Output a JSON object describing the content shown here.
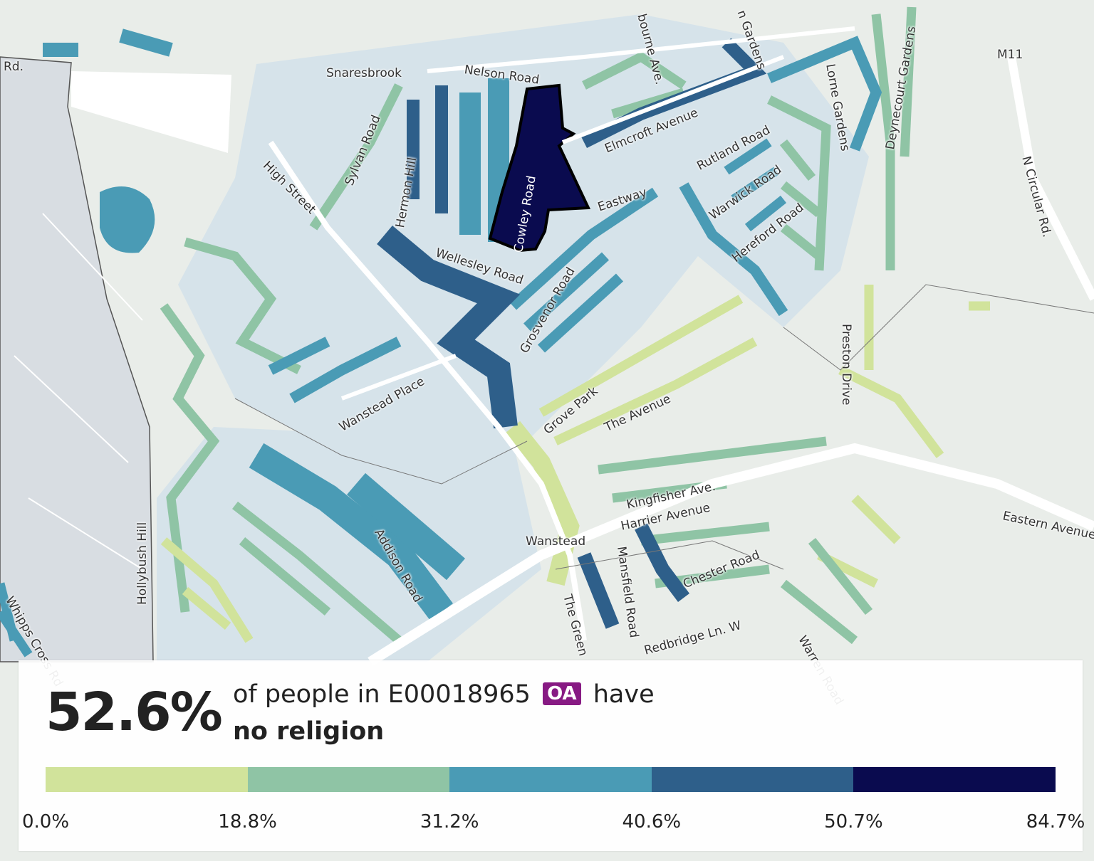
{
  "map": {
    "labels": {
      "rd": "Rd.",
      "snaresbrook": "Snaresbrook",
      "nelson_road": "Nelson Road",
      "sylvan_road": "Sylvan Road",
      "high_street": "High Street",
      "hermon_hill": "Hermon Hill",
      "cowley_road": "Cowley Road",
      "elmcroft_avenue": "Elmcroft Avenue",
      "eastway": "Eastway",
      "rutland_road": "Rutland Road",
      "warwick_road": "Warwick Road",
      "hereford_road": "Hereford Road",
      "lorne_gardens": "Lorne Gardens",
      "deynecourt_gardens": "Deynecourt Gardens",
      "m11": "M11",
      "n_circular": "N Circular Rd.",
      "wellesley_road": "Wellesley Road",
      "grosvenor_road": "Grosvenor Road",
      "wanstead_place": "Wanstead Place",
      "grove_park": "Grove Park",
      "the_avenue": "The Avenue",
      "preston_drive": "Preston Drive",
      "kingfisher_ave": "Kingfisher Ave.",
      "harrier_avenue": "Harrier Avenue",
      "eastern_avenue": "Eastern Avenue",
      "wanstead": "Wanstead",
      "mansfield_road": "Mansfield Road",
      "chester_road": "Chester Road",
      "addison_road": "Addison Road",
      "hollybush_hill": "Hollybush Hill",
      "the_green": "The Green",
      "redbridge_ln": "Redbridge Ln. W",
      "warren_road": "Warren Road",
      "whipps_cross": "Whipps Cross Rd",
      "bourne_ave": "bourne Ave.",
      "n_gardens": "n Gardens"
    },
    "colors": [
      "#d1e39b",
      "#8fc4a5",
      "#4a9bb5",
      "#2e5f8a",
      "#0a0b4f"
    ]
  },
  "panel": {
    "value": "52.6%",
    "prefix": "of people in",
    "area_code": "E00018965",
    "area_type": "OA",
    "suffix": "have",
    "measure": "no religion",
    "selected_value_percent": 52.6,
    "breaks": [
      "0.0%",
      "18.8%",
      "31.2%",
      "40.6%",
      "50.7%",
      "84.7%"
    ],
    "badge_color": "#871a83"
  }
}
